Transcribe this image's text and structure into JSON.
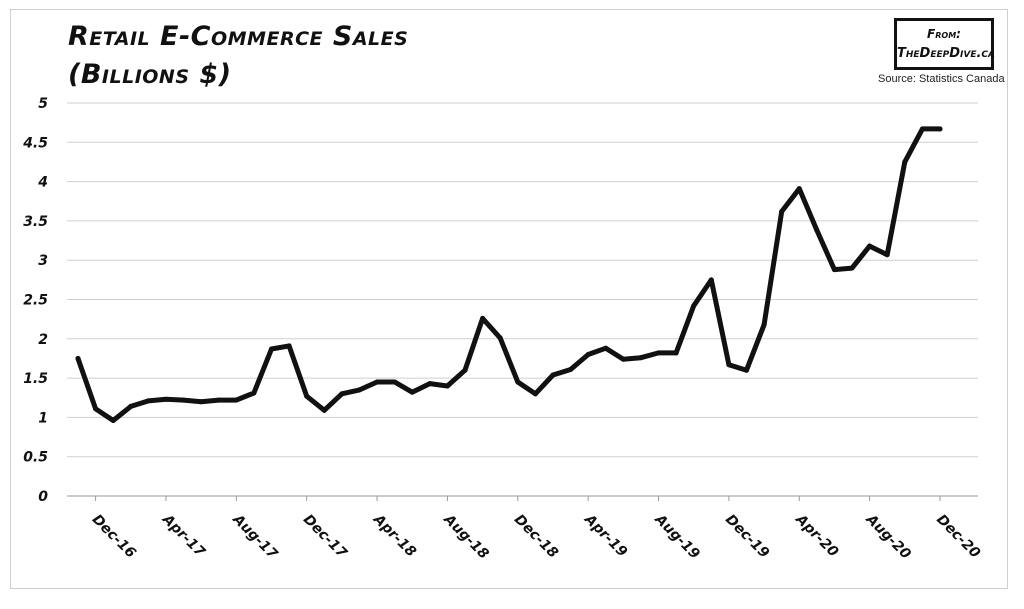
{
  "chart_data": {
    "type": "line",
    "title_lines": [
      "Retail E-Commerce Sales",
      "(Billions $)"
    ],
    "badge": {
      "line1": "From:",
      "line2": "TheDeepDive.ca"
    },
    "source": "Source: Statistics Canada",
    "xlabel": "",
    "ylabel": "",
    "ylim": [
      0,
      5
    ],
    "yticks": [
      "0",
      "0.5",
      "1",
      "1.5",
      "2",
      "2.5",
      "3",
      "3.5",
      "4",
      "4.5",
      "5"
    ],
    "xtick_labels": [
      "Dec-16",
      "Apr-17",
      "Aug-17",
      "Dec-17",
      "Apr-18",
      "Aug-18",
      "Dec-18",
      "Apr-19",
      "Aug-19",
      "Dec-19",
      "Apr-20",
      "Aug-20",
      "Dec-20"
    ],
    "grid": "horizontal",
    "legend": "none",
    "line_color": "#111111",
    "series": [
      {
        "x": [
          "Nov-16",
          "Dec-16",
          "Jan-17",
          "Feb-17",
          "Mar-17",
          "Apr-17",
          "May-17",
          "Jun-17",
          "Jul-17",
          "Aug-17",
          "Sep-17",
          "Oct-17",
          "Nov-17",
          "Dec-17",
          "Jan-18",
          "Feb-18",
          "Mar-18",
          "Apr-18",
          "May-18",
          "Jun-18",
          "Jul-18",
          "Aug-18",
          "Sep-18",
          "Oct-18",
          "Nov-18",
          "Dec-18",
          "Jan-19",
          "Feb-19",
          "Mar-19",
          "Apr-19",
          "May-19",
          "Jun-19",
          "Jul-19",
          "Aug-19",
          "Sep-19",
          "Oct-19",
          "Nov-19",
          "Dec-19",
          "Jan-20",
          "Feb-20",
          "Mar-20",
          "Apr-20",
          "May-20",
          "Jun-20",
          "Jul-20",
          "Aug-20",
          "Sep-20",
          "Oct-20",
          "Nov-20",
          "Dec-20"
        ],
        "values": [
          1.75,
          1.11,
          0.96,
          1.14,
          1.21,
          1.23,
          1.22,
          1.2,
          1.22,
          1.22,
          1.31,
          1.87,
          1.91,
          1.27,
          1.09,
          1.3,
          1.35,
          1.45,
          1.45,
          1.32,
          1.43,
          1.4,
          1.6,
          2.26,
          2.01,
          1.45,
          1.3,
          1.54,
          1.61,
          1.8,
          1.88,
          1.74,
          1.76,
          1.82,
          1.82,
          2.42,
          2.75,
          1.67,
          1.6,
          2.18,
          3.62,
          3.91,
          3.38,
          2.88,
          2.9,
          3.18,
          3.07,
          4.25,
          4.67,
          4.67
        ]
      }
    ]
  }
}
